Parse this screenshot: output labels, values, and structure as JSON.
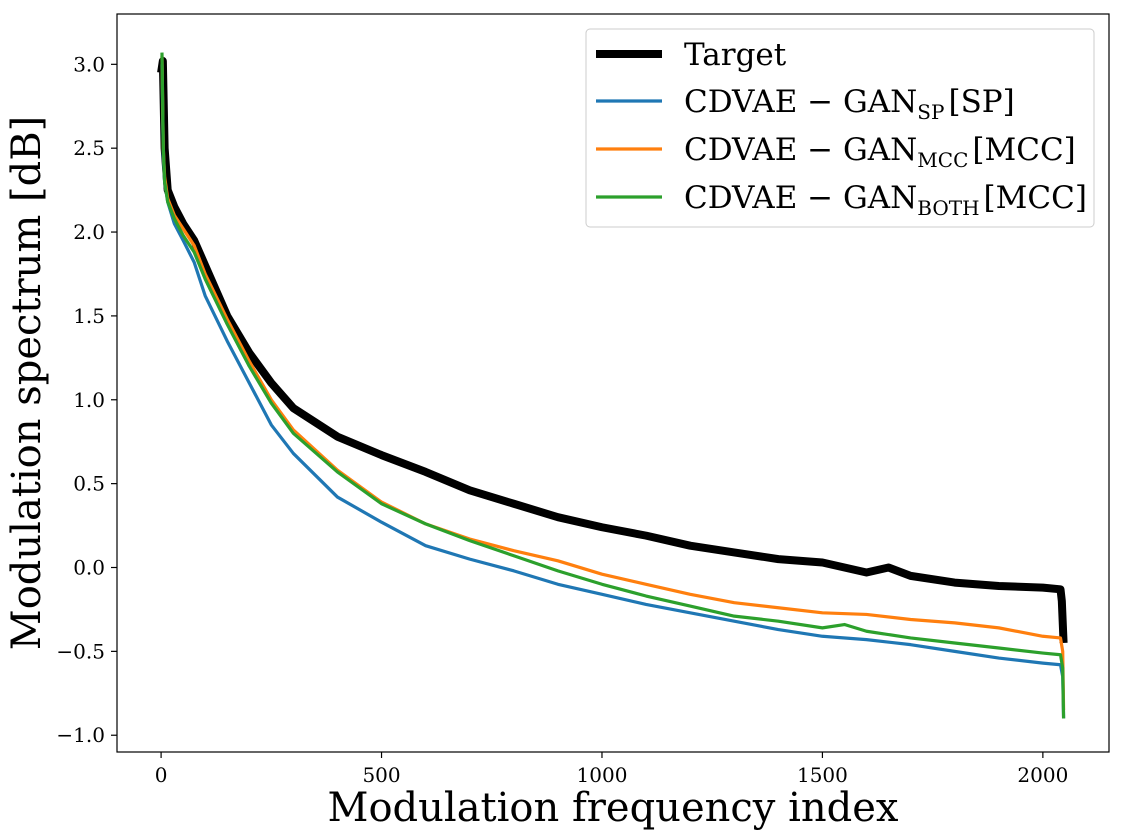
{
  "chart_data": {
    "type": "line",
    "title": "",
    "xlabel": "Modulation frequency index",
    "ylabel": "Modulation spectrum [dB]",
    "xlim": [
      -100,
      2150
    ],
    "ylim": [
      -1.1,
      3.3
    ],
    "xticks": [
      0,
      500,
      1000,
      1500,
      2000
    ],
    "yticks": [
      3.0,
      2.5,
      2.0,
      1.5,
      1.0,
      0.5,
      0.0,
      -0.5,
      -1.0
    ],
    "ytick_labels": [
      "3.0",
      "2.5",
      "2.0",
      "1.5",
      "1.0",
      "0.5",
      "0.0",
      "−0.5",
      "−1.0"
    ],
    "legend_position": "top-right",
    "grid": false,
    "series": [
      {
        "name": "Target",
        "legend_main": "Target",
        "legend_sub": "",
        "legend_tail": "",
        "color": "#000000",
        "thick": true,
        "x": [
          0,
          4,
          8,
          15,
          30,
          50,
          75,
          100,
          150,
          200,
          250,
          300,
          400,
          500,
          600,
          700,
          800,
          900,
          1000,
          1100,
          1200,
          1300,
          1400,
          1500,
          1550,
          1600,
          1650,
          1700,
          1800,
          1900,
          2000,
          2040,
          2043,
          2047
        ],
        "y": [
          2.95,
          3.02,
          2.5,
          2.25,
          2.15,
          2.05,
          1.95,
          1.8,
          1.5,
          1.28,
          1.1,
          0.95,
          0.78,
          0.67,
          0.57,
          0.46,
          0.38,
          0.3,
          0.24,
          0.19,
          0.13,
          0.09,
          0.05,
          0.03,
          0.0,
          -0.03,
          0.0,
          -0.05,
          -0.09,
          -0.11,
          -0.12,
          -0.13,
          -0.2,
          -0.45
        ]
      },
      {
        "name": "CDVAE-GAN_SP [SP]",
        "legend_main": "CDVAE − GAN",
        "legend_sub": "SP",
        "legend_tail": "[SP]",
        "color": "#1f77b4",
        "thick": false,
        "x": [
          2,
          5,
          8,
          15,
          30,
          50,
          75,
          100,
          150,
          200,
          250,
          300,
          400,
          500,
          600,
          700,
          800,
          900,
          1000,
          1100,
          1200,
          1300,
          1400,
          1500,
          1600,
          1700,
          1800,
          1900,
          2000,
          2040,
          2045,
          2047
        ],
        "y": [
          3.0,
          2.45,
          2.3,
          2.18,
          2.05,
          1.95,
          1.82,
          1.62,
          1.35,
          1.1,
          0.85,
          0.68,
          0.42,
          0.27,
          0.13,
          0.05,
          -0.02,
          -0.1,
          -0.16,
          -0.22,
          -0.27,
          -0.32,
          -0.37,
          -0.41,
          -0.43,
          -0.46,
          -0.5,
          -0.54,
          -0.57,
          -0.58,
          -0.65,
          -0.9
        ]
      },
      {
        "name": "CDVAE-GAN_MCC [MCC]",
        "legend_main": "CDVAE − GAN",
        "legend_sub": "MCC",
        "legend_tail": "[MCC]",
        "color": "#ff7f0e",
        "thick": false,
        "x": [
          2,
          5,
          8,
          15,
          30,
          50,
          75,
          100,
          150,
          200,
          250,
          300,
          400,
          500,
          600,
          700,
          800,
          900,
          1000,
          1100,
          1200,
          1300,
          1400,
          1500,
          1600,
          1700,
          1800,
          1900,
          2000,
          2040,
          2045,
          2047
        ],
        "y": [
          3.05,
          2.5,
          2.33,
          2.2,
          2.1,
          2.02,
          1.92,
          1.75,
          1.48,
          1.23,
          1.0,
          0.82,
          0.58,
          0.39,
          0.26,
          0.17,
          0.1,
          0.04,
          -0.04,
          -0.1,
          -0.16,
          -0.21,
          -0.24,
          -0.27,
          -0.28,
          -0.31,
          -0.33,
          -0.36,
          -0.41,
          -0.42,
          -0.5,
          -0.85
        ]
      },
      {
        "name": "CDVAE-GAN_BOTH [MCC]",
        "legend_main": "CDVAE − GAN",
        "legend_sub": "BOTH",
        "legend_tail": "[MCC]",
        "color": "#2ca02c",
        "thick": false,
        "x": [
          2,
          5,
          8,
          15,
          30,
          50,
          75,
          100,
          150,
          200,
          250,
          300,
          400,
          500,
          600,
          700,
          800,
          900,
          1000,
          1100,
          1200,
          1300,
          1400,
          1500,
          1550,
          1600,
          1700,
          1800,
          1900,
          2000,
          2040,
          2045,
          2047
        ],
        "y": [
          3.07,
          2.5,
          2.3,
          2.18,
          2.08,
          1.98,
          1.88,
          1.72,
          1.45,
          1.2,
          0.98,
          0.8,
          0.57,
          0.38,
          0.26,
          0.16,
          0.07,
          -0.02,
          -0.1,
          -0.17,
          -0.23,
          -0.29,
          -0.32,
          -0.36,
          -0.34,
          -0.38,
          -0.42,
          -0.45,
          -0.48,
          -0.51,
          -0.52,
          -0.6,
          -0.9
        ]
      }
    ]
  }
}
